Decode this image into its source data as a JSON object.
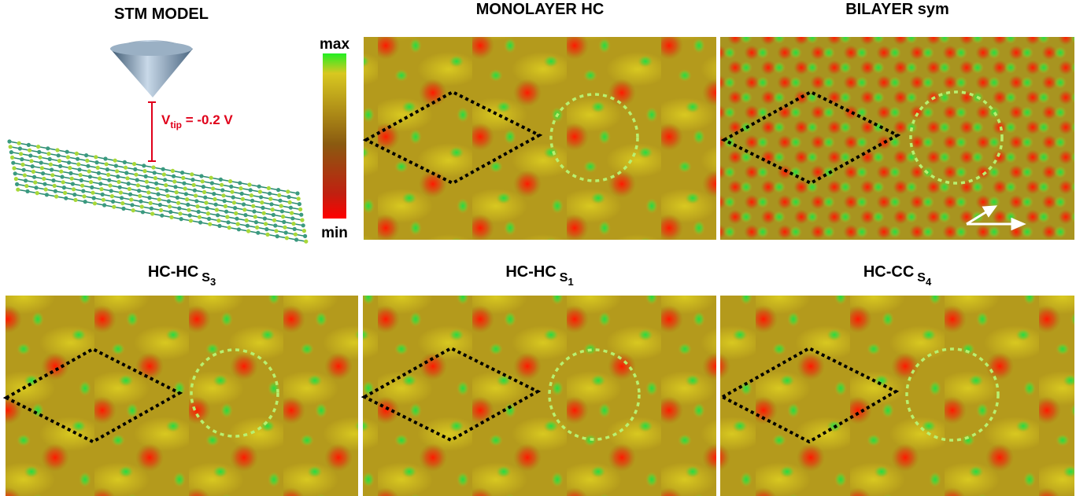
{
  "model": {
    "title": "STM MODEL",
    "bias": {
      "symbol": "V",
      "subscript": "tip",
      "value": " = -0.2 V"
    }
  },
  "colorbar": {
    "max": "max",
    "min": "min"
  },
  "panels": [
    {
      "title": "MONOLAYER HC"
    },
    {
      "title": "BILAYER sym"
    },
    {
      "title": "HC-HC",
      "sub": "S",
      "subsub": "3"
    },
    {
      "title": "HC-HC",
      "sub": "S",
      "subsub": "1"
    },
    {
      "title": "HC-CC",
      "sub": "S",
      "subsub": "4"
    }
  ]
}
